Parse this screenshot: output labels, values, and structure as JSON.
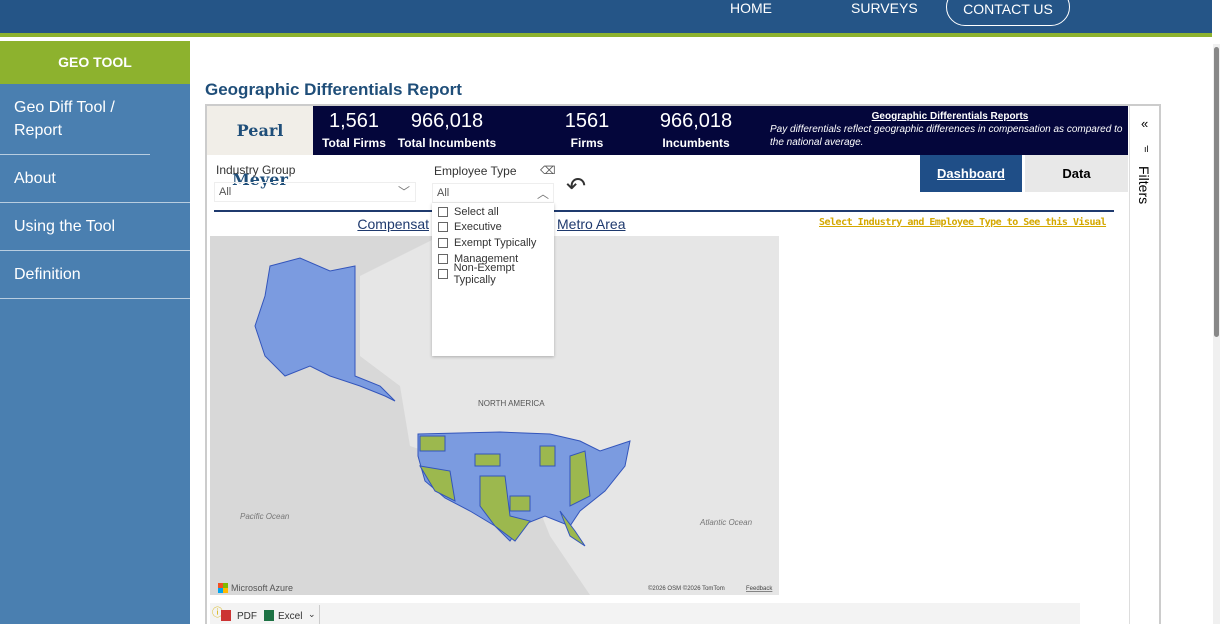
{
  "nav": {
    "home": "HOME",
    "surveys": "SURVEYS",
    "contact": "CONTACT US"
  },
  "sidebar": {
    "header": "GEO TOOL",
    "items": [
      "Geo Diff Tool / Report",
      "About",
      "Using the Tool",
      "Definition"
    ]
  },
  "page_title": "Geographic Differentials Report",
  "logo": "Pearl Meyer",
  "kpis": [
    {
      "value": "1,561",
      "label": "Total Firms"
    },
    {
      "value": "966,018",
      "label": "Total Incumbents"
    },
    {
      "value": "1561",
      "label": "Firms"
    },
    {
      "value": "966,018",
      "label": "Incumbents"
    }
  ],
  "description": {
    "heading": "Geographic Differentials Reports",
    "text": "Pay differentials reflect geographic differences in compensation as compared to the national average."
  },
  "tabs": {
    "dashboard": "Dashboard",
    "data": "Data"
  },
  "filters_label": "Filters",
  "slicers": {
    "industry": {
      "label": "Industry Group",
      "value": "All"
    },
    "employee": {
      "label": "Employee Type",
      "value": "All",
      "options": [
        "Select all",
        "Executive",
        "Exempt Typically",
        "Management",
        "Non-Exempt Typically"
      ]
    }
  },
  "map": {
    "title_left": "Compensat",
    "title_right": "Metro Area",
    "labels": {
      "na": "NORTH AMERICA",
      "pacific": "Pacific Ocean",
      "atlantic": "Atlantic Ocean"
    },
    "brand": "Microsoft Azure",
    "attribution": "©2026 OSM  ©2026 TomTom",
    "feedback": "Feedback"
  },
  "prompt": "Select Industry and Employee Type to See this Visual",
  "export": {
    "pdf": "PDF",
    "excel": "Excel"
  },
  "colors": {
    "topbar": "#255587",
    "accent": "#8db22e",
    "kpi_bg": "#04063b",
    "blue_state": "#7b9be0",
    "green_state": "#9cb84e",
    "prompt": "#d4a800"
  }
}
